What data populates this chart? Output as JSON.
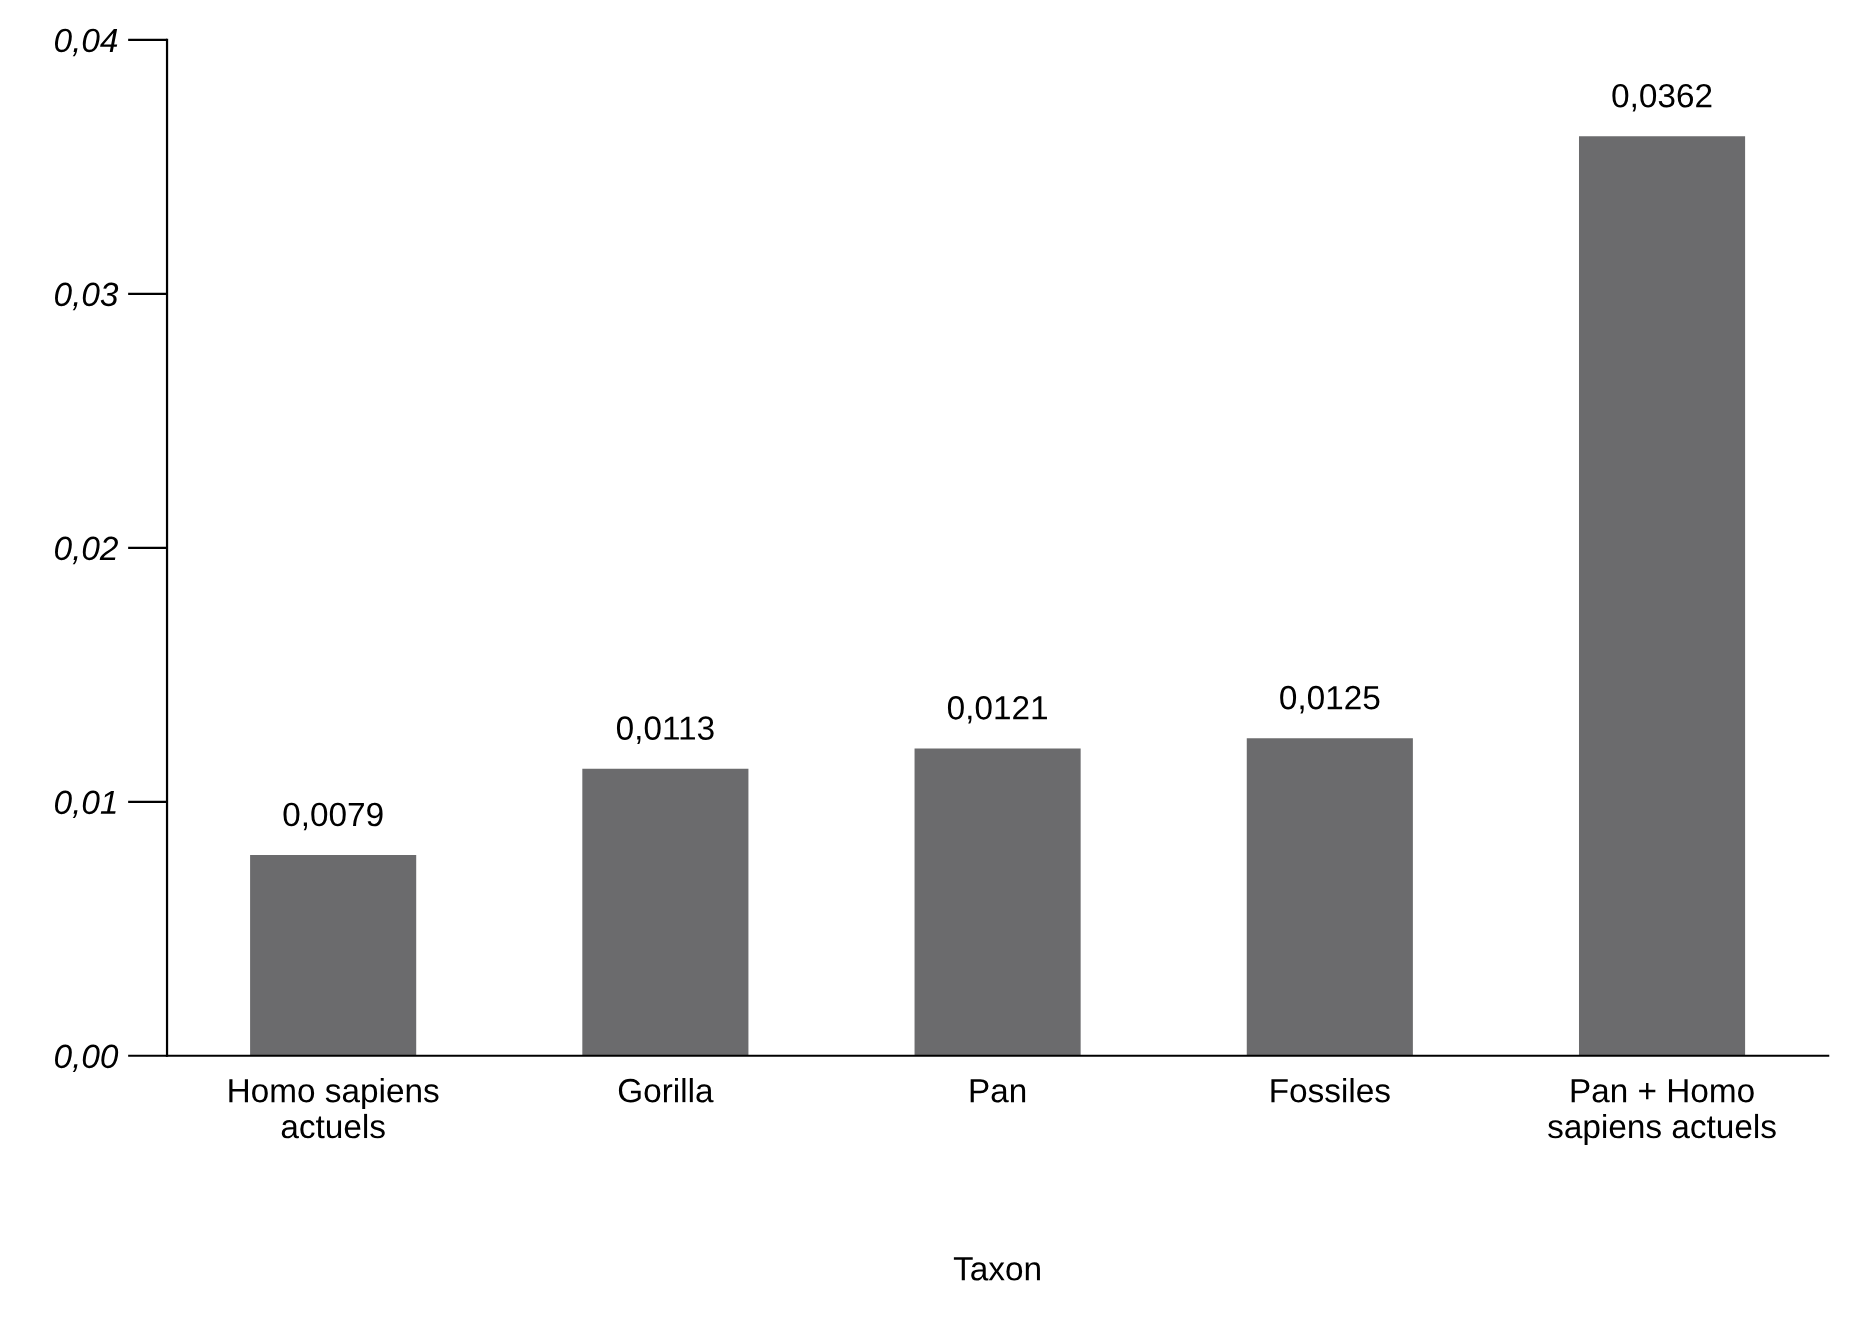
{
  "chart_data": {
    "type": "bar",
    "xlabel": "Taxon",
    "categories": [
      "Homo sapiens\nactuels",
      "Gorilla",
      "Pan",
      "Fossiles",
      "Pan + Homo\nsapiens actuels"
    ],
    "values": [
      0.0079,
      0.0113,
      0.0121,
      0.0125,
      0.0362
    ],
    "value_labels": [
      "0,0079",
      "0,0113",
      "0,0121",
      "0,0125",
      "0,0362"
    ],
    "color": "#6b6b6d",
    "ylim": [
      0,
      0.04
    ],
    "yticks": [
      {
        "value": 0,
        "label": "0,00"
      },
      {
        "value": 0.01,
        "label": "0,01"
      },
      {
        "value": 0.02,
        "label": "0,02"
      },
      {
        "value": 0.03,
        "label": "0,03"
      },
      {
        "value": 0.04,
        "label": "0,04"
      }
    ],
    "grid": false
  }
}
